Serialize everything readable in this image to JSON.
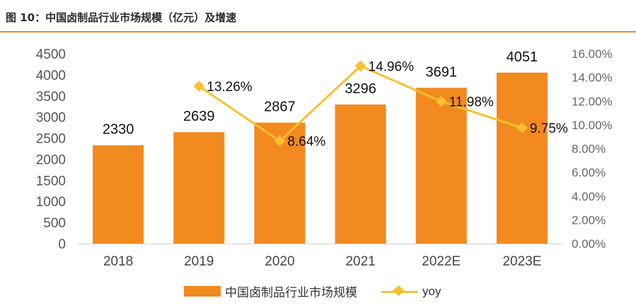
{
  "figure_title": "图 10：中国卤制品行业市场规模（亿元）及增速",
  "chart_data": {
    "type": "bar",
    "categories": [
      "2018",
      "2019",
      "2020",
      "2021",
      "2022E",
      "2023E"
    ],
    "series": [
      {
        "name": "中国卤制品行业市场规模",
        "type": "bar",
        "axis": "left",
        "values": [
          2330,
          2639,
          2867,
          3296,
          3691,
          4051
        ],
        "labels": [
          "2330",
          "2639",
          "2867",
          "3296",
          "3691",
          "4051"
        ]
      },
      {
        "name": "yoy",
        "type": "line",
        "axis": "right",
        "values": [
          null,
          13.26,
          8.64,
          14.96,
          11.98,
          9.75
        ],
        "labels": [
          "",
          "13.26%",
          "8.64%",
          "14.96%",
          "11.98%",
          "9.75%"
        ]
      }
    ],
    "y_left": {
      "min": 0,
      "max": 4500,
      "step": 500,
      "ticks": [
        "0",
        "500",
        "1000",
        "1500",
        "2000",
        "2500",
        "3000",
        "3500",
        "4000",
        "4500"
      ]
    },
    "y_right": {
      "min": 0,
      "max": 16,
      "step": 2,
      "ticks": [
        "0.00%",
        "2.00%",
        "4.00%",
        "6.00%",
        "8.00%",
        "10.00%",
        "12.00%",
        "14.00%",
        "16.00%"
      ]
    },
    "grid": false,
    "legend_position": "bottom",
    "colors": {
      "bar": "#f28a1f",
      "line": "#fbc02d",
      "title_rule": "#f28a1f"
    }
  }
}
